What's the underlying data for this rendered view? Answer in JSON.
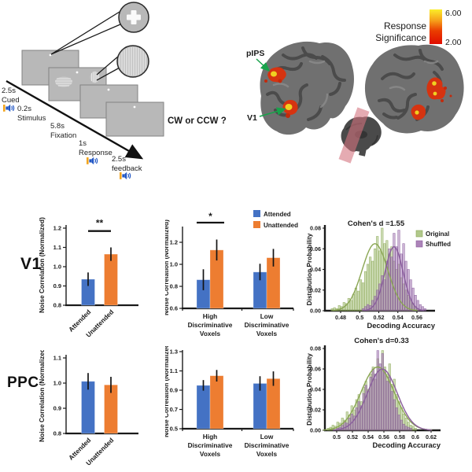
{
  "rows": {
    "v1": "V1",
    "ppc": "PPC"
  },
  "paradigm": {
    "question": "CW or CCW ?",
    "steps": [
      {
        "time": "2.5s",
        "label": "Cued",
        "audio": true
      },
      {
        "time": "0.2s",
        "label": "Stimulus",
        "audio": false
      },
      {
        "time": "5.8s",
        "label": "Fixation",
        "audio": false
      },
      {
        "time": "1s",
        "label": "Response",
        "audio": true
      },
      {
        "time": "2.5s",
        "label": "feedback",
        "audio": true
      }
    ]
  },
  "brain_panel": {
    "region_labels": {
      "pips": "pIPS",
      "v1": "V1"
    },
    "colorbar": {
      "title_line1": "Response",
      "title_line2": "Significance",
      "max_label": "6.00",
      "min_label": "2.00",
      "max_value": 6.0,
      "min_value": 2.0,
      "top_color": "#fbee2a",
      "bottom_color": "#e00d00"
    }
  },
  "colors": {
    "attended": "#4472c4",
    "unattended": "#ed7d31",
    "original": "#a3bf77",
    "shuffled": "#9d6fad"
  },
  "chart_data": {
    "v1_attention": {
      "type": "bar",
      "region": "V1",
      "ylabel": "Noise Correlation (Normalized)",
      "ylim": [
        0.8,
        1.2
      ],
      "yticks": [
        {
          "v": 0.8,
          "label": "0.8"
        },
        {
          "v": 0.9,
          "label": "0.9"
        },
        {
          "v": 1.0,
          "label": "1.0"
        },
        {
          "v": 1.1,
          "label": "1.1"
        },
        {
          "v": 1.2,
          "label": "1.2"
        }
      ],
      "bars": [
        {
          "category": "Attended",
          "value": 0.935,
          "error": 0.035,
          "color": "#4472c4"
        },
        {
          "category": "Unattended",
          "value": 1.065,
          "error": 0.035,
          "color": "#ed7d31"
        }
      ],
      "significance": {
        "label": "**",
        "at": 1.185,
        "from": 0,
        "to": 1
      }
    },
    "v1_voxels": {
      "type": "grouped-bar",
      "region": "V1",
      "ylabel": "Noise Correlation (Normalized)",
      "ylim": [
        0.6,
        1.2
      ],
      "yticks": [
        {
          "v": 0.6,
          "label": "0.6"
        },
        {
          "v": 0.8,
          "label": "0.8"
        },
        {
          "v": 1.0,
          "label": "1.0"
        },
        {
          "v": 1.2,
          "label": "1.2"
        }
      ],
      "categories": [
        [
          "High",
          "Discriminative",
          "Voxels"
        ],
        [
          "Low",
          "Discriminative",
          "Voxels"
        ]
      ],
      "series": [
        {
          "name": "Attended",
          "color": "#4472c4",
          "values": [
            0.86,
            0.93
          ],
          "errors": [
            0.095,
            0.075
          ]
        },
        {
          "name": "Unattended",
          "color": "#ed7d31",
          "values": [
            1.13,
            1.06
          ],
          "errors": [
            0.095,
            0.08
          ]
        }
      ],
      "legend": true,
      "significance": {
        "label": "*",
        "group": 0
      }
    },
    "v1_hist": {
      "type": "histogram",
      "region": "V1",
      "title": "Cohen's d =1.55",
      "xlabel": "Decoding Accuracy",
      "ylabel": "Distribution Probability",
      "xlim": [
        0.4635,
        0.579
      ],
      "xticks": [
        {
          "v": 0.48,
          "label": "0.48"
        },
        {
          "v": 0.5,
          "label": "0.5"
        },
        {
          "v": 0.52,
          "label": "0.52"
        },
        {
          "v": 0.54,
          "label": "0.54"
        },
        {
          "v": 0.56,
          "label": "0.56"
        }
      ],
      "ylim": [
        0,
        0.08
      ],
      "yticks": [
        {
          "v": 0,
          "label": "0.00"
        },
        {
          "v": 0.02,
          "label": "0.02"
        },
        {
          "v": 0.04,
          "label": "0.04"
        },
        {
          "v": 0.06,
          "label": "0.06"
        },
        {
          "v": 0.08,
          "label": "0.08"
        }
      ],
      "legend": true,
      "series": [
        {
          "name": "Original",
          "color": "#8aa653",
          "fill": "#a3bf77",
          "bin_start": 0.47,
          "bin_width": 0.0025,
          "heights": [
            0.002,
            0.003,
            0.002,
            0.005,
            0.004,
            0.008,
            0.007,
            0.012,
            0.01,
            0.016,
            0.022,
            0.019,
            0.03,
            0.027,
            0.038,
            0.045,
            0.052,
            0.048,
            0.06,
            0.072,
            0.058,
            0.08,
            0.065,
            0.068,
            0.055,
            0.062,
            0.048,
            0.04,
            0.045,
            0.032,
            0.026,
            0.02,
            0.015,
            0.01,
            0.007,
            0.004,
            0.002
          ],
          "curve": {
            "mean": 0.516,
            "sd": 0.0135,
            "peak": 0.065
          }
        },
        {
          "name": "Shuffled",
          "color": "#8a5e9d",
          "fill": "#9d6fad",
          "bin_start": 0.5025,
          "bin_width": 0.0025,
          "heights": [
            0.002,
            0.004,
            0.006,
            0.005,
            0.01,
            0.014,
            0.02,
            0.026,
            0.034,
            0.03,
            0.048,
            0.06,
            0.052,
            0.075,
            0.062,
            0.078,
            0.055,
            0.065,
            0.048,
            0.04,
            0.03,
            0.022,
            0.015,
            0.01,
            0.006,
            0.004,
            0.002
          ],
          "curve": {
            "mean": 0.536,
            "sd": 0.0095,
            "peak": 0.062
          }
        }
      ]
    },
    "ppc_attention": {
      "type": "bar",
      "region": "PPC",
      "ylabel": "Noise Correlation (Normalized)",
      "ylim": [
        0.8,
        1.1
      ],
      "yticks": [
        {
          "v": 0.8,
          "label": "0.8"
        },
        {
          "v": 0.9,
          "label": "0.9"
        },
        {
          "v": 1.0,
          "label": "1.0"
        },
        {
          "v": 1.1,
          "label": "1.1"
        }
      ],
      "bars": [
        {
          "category": "Attended",
          "value": 1.007,
          "error": 0.033,
          "color": "#4472c4"
        },
        {
          "category": "Unattended",
          "value": 0.993,
          "error": 0.032,
          "color": "#ed7d31"
        }
      ],
      "significance": null
    },
    "ppc_voxels": {
      "type": "grouped-bar",
      "region": "PPC",
      "ylabel": "Noise Correlation (Normalized)",
      "ylim": [
        0.5,
        1.3
      ],
      "yticks": [
        {
          "v": 0.5,
          "label": "0.5"
        },
        {
          "v": 0.7,
          "label": "0.7"
        },
        {
          "v": 0.9,
          "label": "0.9"
        },
        {
          "v": 1.1,
          "label": "1.1"
        },
        {
          "v": 1.3,
          "label": "1.3"
        }
      ],
      "categories": [
        [
          "High",
          "Discriminative",
          "Voxels"
        ],
        [
          "Low",
          "Discriminative",
          "Voxels"
        ]
      ],
      "series": [
        {
          "name": "Attended",
          "color": "#4472c4",
          "values": [
            0.95,
            0.97
          ],
          "errors": [
            0.055,
            0.075
          ]
        },
        {
          "name": "Unattended",
          "color": "#ed7d31",
          "values": [
            1.05,
            1.02
          ],
          "errors": [
            0.06,
            0.075
          ]
        }
      ],
      "legend": false,
      "significance": null
    },
    "ppc_hist": {
      "type": "histogram",
      "region": "PPC",
      "title": "Cohen's d=0.33",
      "xlabel": "Decoding Accuracy",
      "ylabel": "Distribution Probability",
      "xlim": [
        0.485,
        0.632
      ],
      "xticks": [
        {
          "v": 0.5,
          "label": "0.5"
        },
        {
          "v": 0.52,
          "label": "0.52"
        },
        {
          "v": 0.54,
          "label": "0.54"
        },
        {
          "v": 0.56,
          "label": "0.56"
        },
        {
          "v": 0.58,
          "label": "0.58"
        },
        {
          "v": 0.6,
          "label": "0.6"
        },
        {
          "v": 0.62,
          "label": "0.62"
        }
      ],
      "ylim": [
        0,
        0.08
      ],
      "yticks": [
        {
          "v": 0,
          "label": "0.00"
        },
        {
          "v": 0.02,
          "label": "0.02"
        },
        {
          "v": 0.04,
          "label": "0.04"
        },
        {
          "v": 0.06,
          "label": "0.06"
        },
        {
          "v": 0.08,
          "label": "0.08"
        }
      ],
      "legend": false,
      "series": [
        {
          "name": "Original",
          "color": "#8aa653",
          "fill": "#a3bf77",
          "bin_start": 0.488,
          "bin_width": 0.003,
          "heights": [
            0.002,
            0.003,
            0.005,
            0.004,
            0.008,
            0.007,
            0.012,
            0.01,
            0.018,
            0.015,
            0.024,
            0.02,
            0.03,
            0.035,
            0.028,
            0.042,
            0.048,
            0.04,
            0.055,
            0.062,
            0.05,
            0.07,
            0.058,
            0.078,
            0.062,
            0.055,
            0.065,
            0.045,
            0.05,
            0.035,
            0.028,
            0.022,
            0.016,
            0.012,
            0.008,
            0.005,
            0.004,
            0.002
          ],
          "curve": {
            "mean": 0.552,
            "sd": 0.021,
            "peak": 0.062
          }
        },
        {
          "name": "Shuffled",
          "color": "#8a5e9d",
          "fill": "#9d6fad",
          "bin_start": 0.5,
          "bin_width": 0.003,
          "heights": [
            0.002,
            0.003,
            0.005,
            0.008,
            0.007,
            0.012,
            0.016,
            0.014,
            0.022,
            0.028,
            0.024,
            0.036,
            0.044,
            0.038,
            0.052,
            0.06,
            0.055,
            0.078,
            0.065,
            0.075,
            0.058,
            0.048,
            0.052,
            0.038,
            0.03,
            0.022,
            0.015,
            0.01,
            0.006,
            0.004,
            0.003,
            0.002
          ],
          "curve": {
            "mean": 0.558,
            "sd": 0.019,
            "peak": 0.06
          }
        }
      ]
    }
  }
}
